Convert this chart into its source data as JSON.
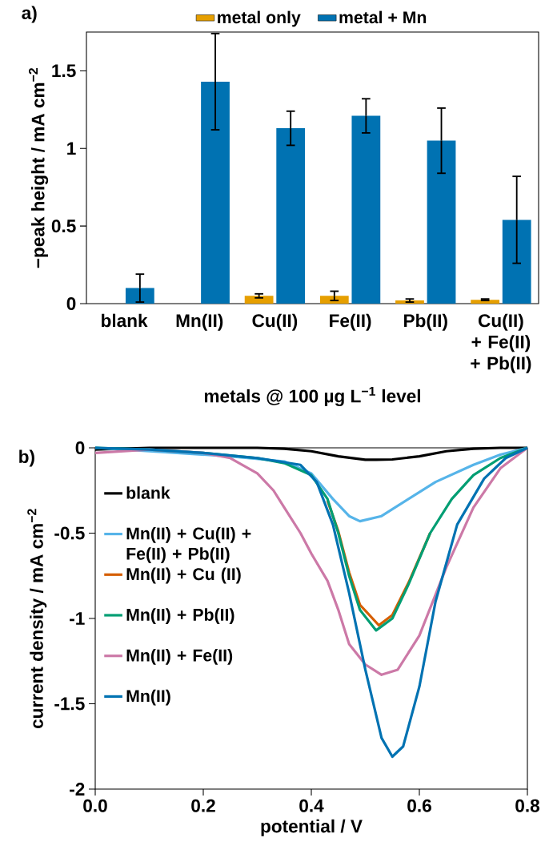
{
  "chart_data": [
    {
      "type": "bar",
      "annotations": [
        "a)"
      ],
      "xlabel": "metals @ 100 µg L$^{−1}$ level",
      "ylabel": "−peak height / mA cm$^{−2}$",
      "categories": [
        "blank",
        "Mn(II)",
        "Cu(II)",
        "Fe(II)",
        "Pb(II)",
        "Cu(II) + Fe(II) + Pb(II)"
      ],
      "series": [
        {
          "name": "metal only",
          "color": "#e69f00",
          "values": [
            null,
            null,
            0.05,
            0.05,
            0.02,
            0.025
          ],
          "errors": [
            null,
            null,
            0.013,
            0.03,
            0.01,
            0.005
          ]
        },
        {
          "name": "metal + Mn",
          "color": "#0072b2",
          "values": [
            0.1,
            1.43,
            1.13,
            1.21,
            1.05,
            0.54
          ],
          "errors": [
            0.09,
            0.31,
            0.11,
            0.11,
            0.21,
            0.28
          ]
        }
      ],
      "ylim": [
        0,
        1.75
      ],
      "yticks": [
        0,
        0.5,
        1,
        1.5
      ],
      "legend": "top",
      "grid": false
    },
    {
      "type": "line",
      "annotations": [
        "b)"
      ],
      "xlabel": "potential / V",
      "ylabel": "current density / mA cm$^{−2}$",
      "series": [
        {
          "name": "blank",
          "color": "#000000",
          "x": [
            0,
            0.1,
            0.2,
            0.3,
            0.35,
            0.4,
            0.45,
            0.5,
            0.52,
            0.55,
            0.6,
            0.65,
            0.7,
            0.75,
            0.8
          ],
          "values": [
            -0.01,
            0,
            0,
            0,
            -0.005,
            -0.02,
            -0.05,
            -0.07,
            -0.07,
            -0.068,
            -0.05,
            -0.02,
            -0.005,
            0,
            0
          ]
        },
        {
          "name": "Mn(II) + Cu(II) + Fe(II) + Pb(II)",
          "color": "#56b4e9",
          "x": [
            0,
            0.1,
            0.25,
            0.35,
            0.4,
            0.44,
            0.47,
            0.49,
            0.53,
            0.58,
            0.63,
            0.7,
            0.75,
            0.8
          ],
          "values": [
            0,
            -0.02,
            -0.05,
            -0.08,
            -0.15,
            -0.3,
            -0.4,
            -0.43,
            -0.4,
            -0.3,
            -0.2,
            -0.1,
            -0.04,
            0
          ]
        },
        {
          "name": "Mn(II) + Cu (II)",
          "color": "#d55e00",
          "x": [
            0.43,
            0.45,
            0.47,
            0.49,
            0.525,
            0.55,
            0.58,
            0.62
          ],
          "values": [
            -0.31,
            -0.49,
            -0.73,
            -0.92,
            -1.04,
            -0.98,
            -0.79,
            -0.5
          ]
        },
        {
          "name": "Mn(II) + Pb(II)",
          "color": "#009e73",
          "x": [
            0,
            0.1,
            0.2,
            0.3,
            0.35,
            0.4,
            0.43,
            0.45,
            0.47,
            0.49,
            0.52,
            0.55,
            0.58,
            0.62,
            0.66,
            0.7,
            0.75,
            0.8
          ],
          "values": [
            0,
            -0.01,
            -0.03,
            -0.06,
            -0.09,
            -0.16,
            -0.3,
            -0.5,
            -0.75,
            -0.95,
            -1.07,
            -1.0,
            -0.8,
            -0.5,
            -0.3,
            -0.16,
            -0.06,
            0
          ]
        },
        {
          "name": "Mn(II) + Fe(II)",
          "color": "#cc79a7",
          "x": [
            0,
            0.1,
            0.2,
            0.25,
            0.3,
            0.33,
            0.35,
            0.38,
            0.4,
            0.43,
            0.45,
            0.47,
            0.5,
            0.53,
            0.56,
            0.6,
            0.65,
            0.7,
            0.75,
            0.8
          ],
          "values": [
            -0.03,
            -0.01,
            -0.03,
            -0.06,
            -0.15,
            -0.25,
            -0.35,
            -0.5,
            -0.62,
            -0.78,
            -0.95,
            -1.15,
            -1.27,
            -1.33,
            -1.3,
            -1.1,
            -0.7,
            -0.35,
            -0.12,
            0
          ]
        },
        {
          "name": "Mn(II)",
          "color": "#0072b2",
          "x": [
            0,
            0.1,
            0.2,
            0.3,
            0.38,
            0.41,
            0.44,
            0.47,
            0.5,
            0.53,
            0.55,
            0.57,
            0.6,
            0.63,
            0.67,
            0.72,
            0.76,
            0.8
          ],
          "values": [
            0,
            -0.01,
            -0.03,
            -0.06,
            -0.1,
            -0.2,
            -0.45,
            -0.85,
            -1.3,
            -1.7,
            -1.81,
            -1.75,
            -1.4,
            -0.9,
            -0.45,
            -0.18,
            -0.06,
            0
          ]
        }
      ],
      "xlim": [
        0,
        0.8
      ],
      "xticks": [
        {
          "value": 0,
          "label": "0.0"
        },
        0.2,
        0.4,
        0.6,
        0.8
      ],
      "ylim": [
        -2,
        0
      ],
      "yticks": [
        0,
        -0.5,
        -1,
        -1.5,
        -2
      ],
      "legend": "left",
      "marker": "none",
      "line_style": "solid",
      "grid": false
    }
  ]
}
